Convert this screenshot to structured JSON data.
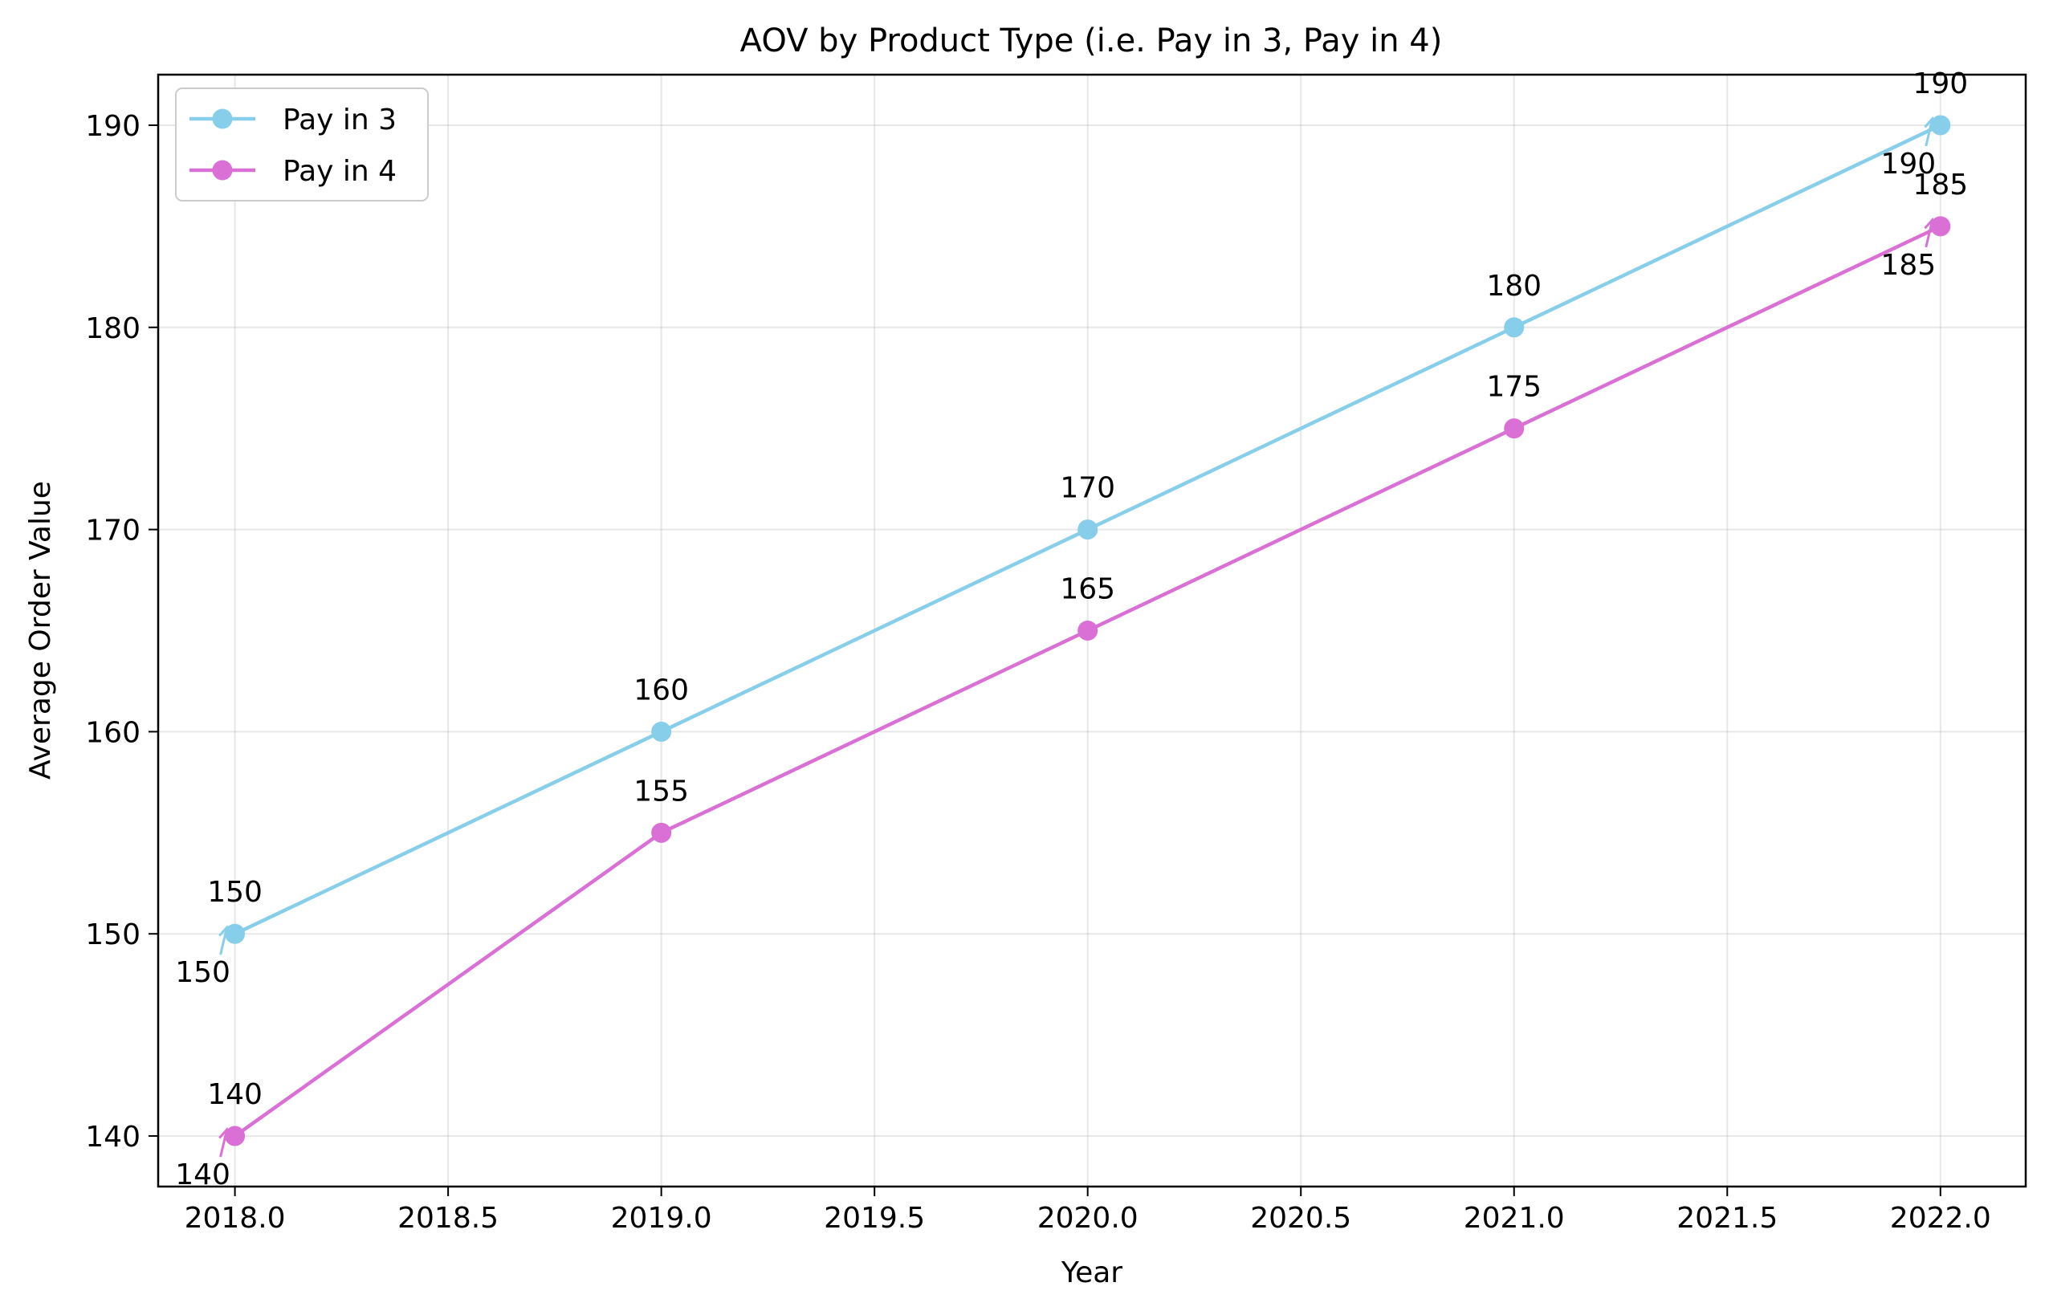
{
  "chart_data": {
    "type": "line",
    "title": "AOV by Product Type (i.e. Pay in 3, Pay in 4)",
    "xlabel": "Year",
    "ylabel": "Average Order Value",
    "xlim": [
      2017.82,
      2022.2
    ],
    "ylim": [
      137.5,
      192.5
    ],
    "xticks": [
      2018.0,
      2018.5,
      2019.0,
      2019.5,
      2020.0,
      2020.5,
      2021.0,
      2021.5,
      2022.0
    ],
    "xtick_labels": [
      "2018.0",
      "2018.5",
      "2019.0",
      "2019.5",
      "2020.0",
      "2020.5",
      "2021.0",
      "2021.5",
      "2022.0"
    ],
    "yticks": [
      140,
      150,
      160,
      170,
      180,
      190
    ],
    "ytick_labels": [
      "140",
      "150",
      "160",
      "170",
      "180",
      "190"
    ],
    "grid": true,
    "legend_position": "top-left",
    "x": [
      2018,
      2019,
      2020,
      2021,
      2022
    ],
    "series": [
      {
        "name": "Pay in 3",
        "color": "#87ceeb",
        "values": [
          150,
          160,
          170,
          180,
          190
        ],
        "labels": [
          "150",
          "160",
          "170",
          "180",
          "190"
        ]
      },
      {
        "name": "Pay in 4",
        "color": "#da70d6",
        "values": [
          140,
          155,
          165,
          175,
          185
        ],
        "labels": [
          "140",
          "155",
          "165",
          "175",
          "185"
        ]
      }
    ],
    "annotations": [
      {
        "text": "150",
        "x": 2018,
        "y": 150,
        "color": "#87ceeb",
        "placement": "lower-left"
      },
      {
        "text": "140",
        "x": 2018,
        "y": 140,
        "color": "#da70d6",
        "placement": "lower-left"
      },
      {
        "text": "190",
        "x": 2022,
        "y": 190,
        "color": "#87ceeb",
        "placement": "lower-left"
      },
      {
        "text": "185",
        "x": 2022,
        "y": 185,
        "color": "#da70d6",
        "placement": "lower-left"
      }
    ]
  }
}
